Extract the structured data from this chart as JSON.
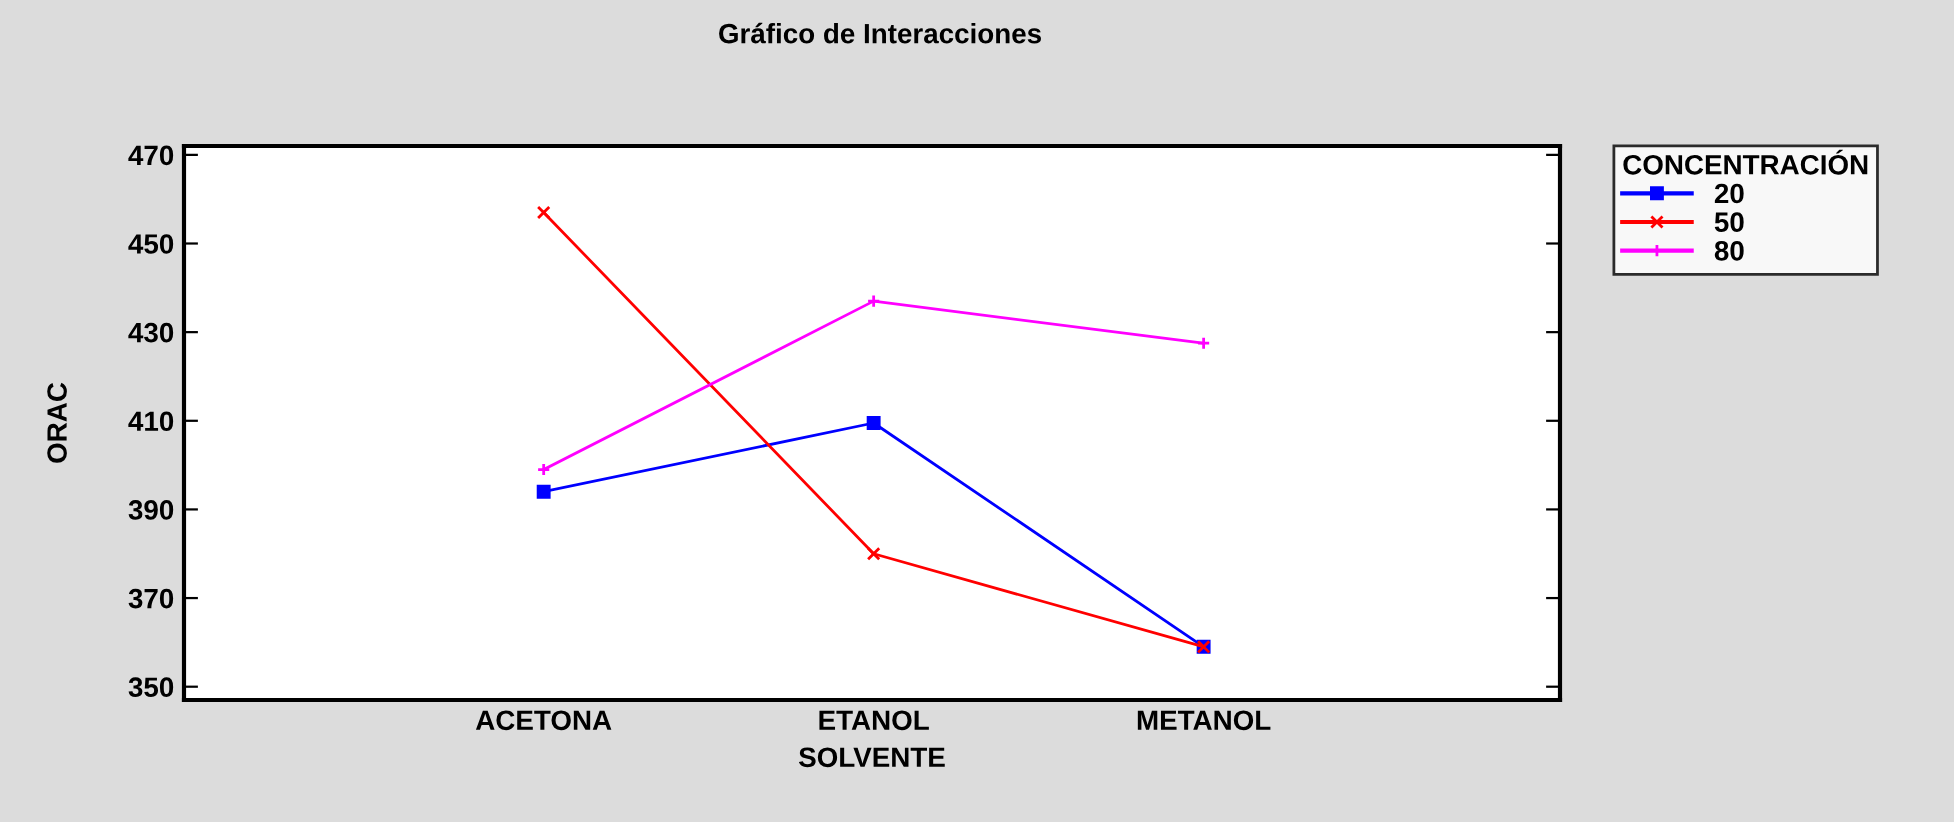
{
  "chart_data": {
    "type": "line",
    "title": "Gráfico de Interacciones",
    "xlabel": "SOLVENTE",
    "ylabel": "ORAC",
    "legend_title": "CONCENTRACIÓN",
    "categories": [
      "ACETONA",
      "ETANOL",
      "METANOL"
    ],
    "series": [
      {
        "name": "20",
        "color": "#0000ff",
        "marker": "square",
        "values": [
          394,
          409.5,
          359
        ]
      },
      {
        "name": "50",
        "color": "#ff0000",
        "marker": "cross",
        "values": [
          457,
          380,
          359
        ]
      },
      {
        "name": "80",
        "color": "#ff00ff",
        "marker": "plus",
        "values": [
          399,
          437,
          427.5
        ]
      }
    ],
    "ylim": [
      347,
      472
    ],
    "yticks": [
      350,
      370,
      390,
      410,
      430,
      450,
      470
    ],
    "grid": false,
    "legend": "top right",
    "line_style": "solid"
  }
}
